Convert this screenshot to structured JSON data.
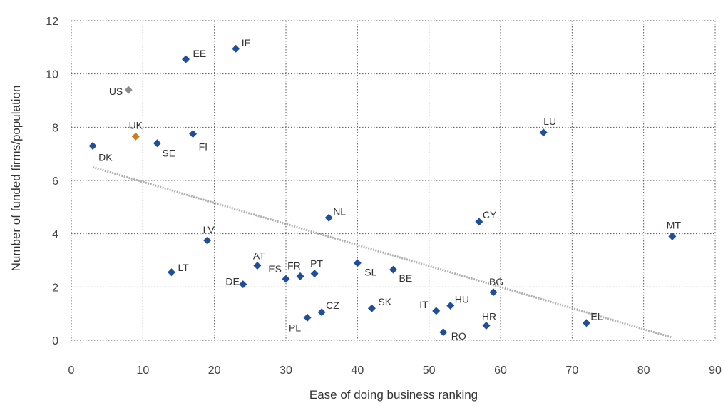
{
  "chart_data": {
    "type": "scatter",
    "title": "",
    "xlabel": "Ease of doing business ranking",
    "ylabel": "Number of funded firms/population",
    "xlim": [
      0,
      90
    ],
    "ylim": [
      0,
      12
    ],
    "x_ticks": [
      0,
      10,
      20,
      30,
      40,
      50,
      60,
      70,
      80,
      90
    ],
    "y_ticks": [
      0,
      2,
      4,
      6,
      8,
      10,
      12
    ],
    "grid": "dotted",
    "colors": {
      "default": "#1f4e9c",
      "US": "#8c8c8c",
      "UK": "#c97f1a",
      "trend": "#b0b0b0"
    },
    "points": [
      {
        "label": "DK",
        "x": 3,
        "y": 7.3,
        "color": "#1f4e9c"
      },
      {
        "label": "US",
        "x": 8,
        "y": 9.4,
        "color": "#8c8c8c"
      },
      {
        "label": "UK",
        "x": 9,
        "y": 7.65,
        "color": "#c97f1a"
      },
      {
        "label": "SE",
        "x": 12,
        "y": 7.4,
        "color": "#1f4e9c"
      },
      {
        "label": "LT",
        "x": 14,
        "y": 2.55,
        "color": "#1f4e9c"
      },
      {
        "label": "EE",
        "x": 16,
        "y": 10.55,
        "color": "#1f4e9c"
      },
      {
        "label": "FI",
        "x": 17,
        "y": 7.75,
        "color": "#1f4e9c"
      },
      {
        "label": "LV",
        "x": 19,
        "y": 3.75,
        "color": "#1f4e9c"
      },
      {
        "label": "IE",
        "x": 23,
        "y": 10.95,
        "color": "#1f4e9c"
      },
      {
        "label": "DE",
        "x": 24,
        "y": 2.1,
        "color": "#1f4e9c"
      },
      {
        "label": "AT",
        "x": 26,
        "y": 2.8,
        "color": "#1f4e9c"
      },
      {
        "label": "ES",
        "x": 30,
        "y": 2.3,
        "color": "#1f4e9c"
      },
      {
        "label": "FR",
        "x": 32,
        "y": 2.4,
        "color": "#1f4e9c"
      },
      {
        "label": "PL",
        "x": 33,
        "y": 0.85,
        "color": "#1f4e9c"
      },
      {
        "label": "PT",
        "x": 34,
        "y": 2.5,
        "color": "#1f4e9c"
      },
      {
        "label": "CZ",
        "x": 35,
        "y": 1.05,
        "color": "#1f4e9c"
      },
      {
        "label": "NL",
        "x": 36,
        "y": 4.6,
        "color": "#1f4e9c"
      },
      {
        "label": "SL",
        "x": 40,
        "y": 2.9,
        "color": "#1f4e9c"
      },
      {
        "label": "SK",
        "x": 42,
        "y": 1.2,
        "color": "#1f4e9c"
      },
      {
        "label": "BE",
        "x": 45,
        "y": 2.65,
        "color": "#1f4e9c"
      },
      {
        "label": "IT",
        "x": 51,
        "y": 1.1,
        "color": "#1f4e9c"
      },
      {
        "label": "RO",
        "x": 52,
        "y": 0.3,
        "color": "#1f4e9c"
      },
      {
        "label": "HU",
        "x": 53,
        "y": 1.3,
        "color": "#1f4e9c"
      },
      {
        "label": "CY",
        "x": 57,
        "y": 4.45,
        "color": "#1f4e9c"
      },
      {
        "label": "HR",
        "x": 58,
        "y": 0.55,
        "color": "#1f4e9c"
      },
      {
        "label": "BG",
        "x": 59,
        "y": 1.8,
        "color": "#1f4e9c"
      },
      {
        "label": "LU",
        "x": 66,
        "y": 7.8,
        "color": "#1f4e9c"
      },
      {
        "label": "EL",
        "x": 72,
        "y": 0.65,
        "color": "#1f4e9c"
      },
      {
        "label": "MT",
        "x": 84,
        "y": 3.9,
        "color": "#1f4e9c"
      }
    ],
    "trendline": {
      "x": [
        3,
        84
      ],
      "y": [
        6.5,
        0.1
      ]
    }
  }
}
